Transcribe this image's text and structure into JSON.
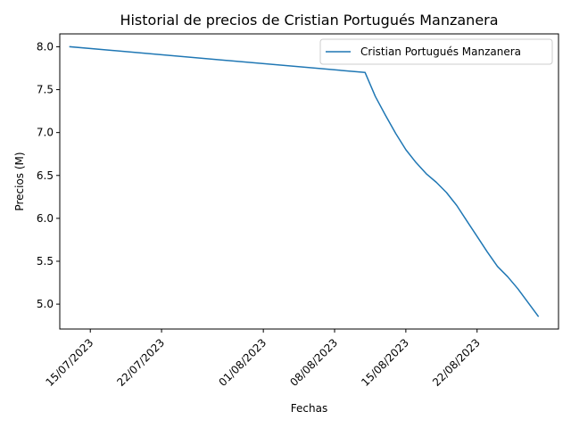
{
  "chart_data": {
    "type": "line",
    "title": "Historial de precios de Cristian Portugués Manzanera",
    "xlabel": "Fechas",
    "ylabel": "Precios (M)",
    "grid": false,
    "legend_position": "top-right",
    "xlim": [
      "2023-07-12",
      "2023-08-30"
    ],
    "ylim": [
      4.71,
      8.15
    ],
    "x_ticks": [
      {
        "date": "2023-07-15",
        "label": "15/07/2023"
      },
      {
        "date": "2023-07-22",
        "label": "22/07/2023"
      },
      {
        "date": "2023-08-01",
        "label": "01/08/2023"
      },
      {
        "date": "2023-08-08",
        "label": "08/08/2023"
      },
      {
        "date": "2023-08-15",
        "label": "15/08/2023"
      },
      {
        "date": "2023-08-22",
        "label": "22/08/2023"
      }
    ],
    "y_ticks": [
      {
        "value": 5.0,
        "label": "5.0"
      },
      {
        "value": 5.5,
        "label": "5.5"
      },
      {
        "value": 6.0,
        "label": "6.0"
      },
      {
        "value": 6.5,
        "label": "6.5"
      },
      {
        "value": 7.0,
        "label": "7.0"
      },
      {
        "value": 7.5,
        "label": "7.5"
      },
      {
        "value": 8.0,
        "label": "8.0"
      }
    ],
    "series": [
      {
        "name": "Cristian Portugués Manzanera",
        "color": "#1f77b4",
        "points": [
          {
            "x": "2023-07-13",
            "y": 8.0
          },
          {
            "x": "2023-08-11",
            "y": 7.7
          },
          {
            "x": "2023-08-12",
            "y": 7.42
          },
          {
            "x": "2023-08-13",
            "y": 7.2
          },
          {
            "x": "2023-08-14",
            "y": 6.99
          },
          {
            "x": "2023-08-15",
            "y": 6.8
          },
          {
            "x": "2023-08-16",
            "y": 6.65
          },
          {
            "x": "2023-08-17",
            "y": 6.52
          },
          {
            "x": "2023-08-18",
            "y": 6.42
          },
          {
            "x": "2023-08-19",
            "y": 6.3
          },
          {
            "x": "2023-08-20",
            "y": 6.15
          },
          {
            "x": "2023-08-21",
            "y": 5.97
          },
          {
            "x": "2023-08-22",
            "y": 5.79
          },
          {
            "x": "2023-08-23",
            "y": 5.61
          },
          {
            "x": "2023-08-24",
            "y": 5.44
          },
          {
            "x": "2023-08-25",
            "y": 5.32
          },
          {
            "x": "2023-08-26",
            "y": 5.18
          },
          {
            "x": "2023-08-27",
            "y": 5.02
          },
          {
            "x": "2023-08-28",
            "y": 4.86
          }
        ]
      }
    ]
  }
}
